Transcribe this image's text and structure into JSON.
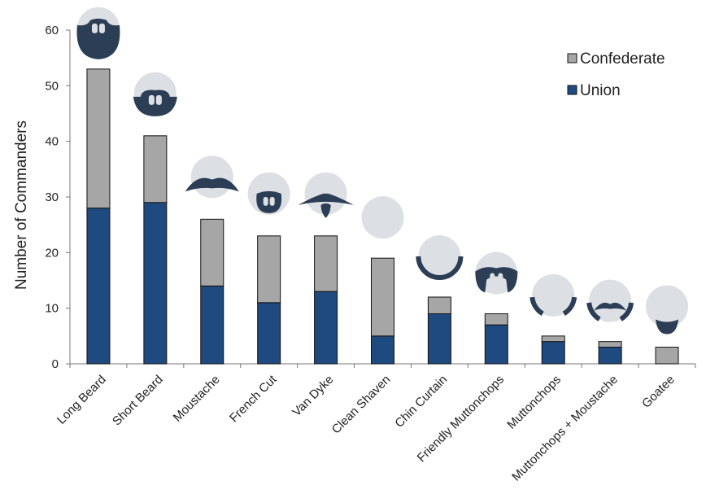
{
  "chart_data": {
    "type": "bar",
    "stacked": true,
    "categories": [
      "Long Beard",
      "Short Beard",
      "Moustache",
      "French Cut",
      "Van Dyke",
      "Clean Shaven",
      "Chin Curtain",
      "Friendly Muttonchops",
      "Muttonchops",
      "Muttonchops + Moustache",
      "Goatee"
    ],
    "series": [
      {
        "name": "Union",
        "values": [
          28,
          29,
          14,
          11,
          13,
          5,
          9,
          7,
          4,
          3,
          0
        ],
        "color": "#1f4a7f"
      },
      {
        "name": "Confederate",
        "values": [
          25,
          12,
          12,
          12,
          10,
          14,
          3,
          2,
          1,
          1,
          3
        ],
        "color": "#a6a6a6"
      }
    ],
    "legend_order": [
      "Confederate",
      "Union"
    ],
    "legend_position": "top-right",
    "ylabel": "Number of Commanders",
    "xlabel": "",
    "ylim": [
      0,
      60
    ],
    "yticks": [
      0,
      10,
      20,
      30,
      40,
      50,
      60
    ],
    "grid": false,
    "icons": [
      "long-beard-icon",
      "short-beard-icon",
      "moustache-icon",
      "french-cut-icon",
      "van-dyke-icon",
      "clean-shaven-icon",
      "chin-curtain-icon",
      "friendly-muttonchops-icon",
      "muttonchops-icon",
      "muttonchops-moustache-icon",
      "goatee-icon"
    ],
    "icon_colors": {
      "face": "#dcdfe3",
      "hair": "#2c3e55"
    }
  }
}
